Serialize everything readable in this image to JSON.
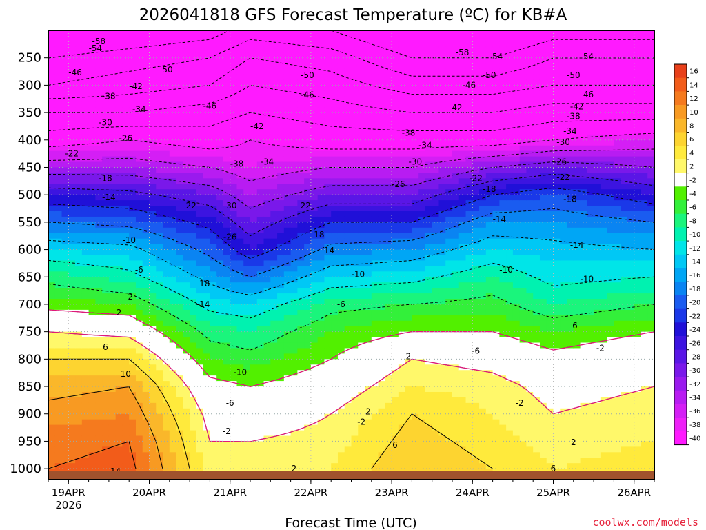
{
  "chart_data": {
    "type": "heatmap",
    "title": "2026041818 GFS Forecast Temperature (ºC) for KB#A",
    "xlabel": "Forecast Time (UTC)",
    "credit": "coolwx.com/models",
    "y_ticks": [
      250,
      300,
      350,
      400,
      450,
      500,
      550,
      600,
      650,
      700,
      750,
      800,
      850,
      900,
      950,
      1000
    ],
    "y_range_hpa": [
      200,
      1020
    ],
    "x_ticks": [
      {
        "label": "19APR",
        "sublabel": "2026",
        "hour": 6
      },
      {
        "label": "20APR",
        "sublabel": "",
        "hour": 30
      },
      {
        "label": "21APR",
        "sublabel": "",
        "hour": 54
      },
      {
        "label": "22APR",
        "sublabel": "",
        "hour": 78
      },
      {
        "label": "23APR",
        "sublabel": "",
        "hour": 102
      },
      {
        "label": "24APR",
        "sublabel": "",
        "hour": 126
      },
      {
        "label": "25APR",
        "sublabel": "",
        "hour": 150
      },
      {
        "label": "26APR",
        "sublabel": "",
        "hour": 174
      }
    ],
    "x_range_hours": [
      0,
      180
    ],
    "colorbar": {
      "levels": [
        16,
        14,
        12,
        10,
        8,
        6,
        4,
        2,
        -2,
        -4,
        -6,
        -8,
        -10,
        -12,
        -14,
        -16,
        -18,
        -20,
        -22,
        -24,
        -26,
        -28,
        -30,
        -32,
        -34,
        -36,
        -38,
        -40
      ],
      "colors": [
        "#e8401a",
        "#f25c1a",
        "#f57a1e",
        "#f89a22",
        "#fab72a",
        "#fdd430",
        "#ffea3c",
        "#fff86a",
        "#ffffff",
        "#52f000",
        "#33f03a",
        "#1af57c",
        "#00f2b0",
        "#00e5e8",
        "#00c8f5",
        "#00a6f5",
        "#0a84f2",
        "#1a5cf0",
        "#1a38e8",
        "#2010d8",
        "#3c14e0",
        "#5a16e6",
        "#7a18ea",
        "#9a1aee",
        "#b81cf2",
        "#d41ef5",
        "#ee20f8",
        "#ff1aff"
      ]
    },
    "temperature_profiles": [
      {
        "time_hour": 0,
        "temp_c": [
          -58,
          -54,
          -46,
          -40,
          -32,
          -24,
          -18,
          -12,
          -7,
          -3,
          2,
          6,
          9,
          11,
          13,
          14
        ]
      },
      {
        "time_hour": 24,
        "temp_c": [
          -56,
          -52,
          -46,
          -38,
          -32,
          -25,
          -19,
          -13,
          -9,
          -4,
          1,
          6,
          10,
          12,
          14,
          15
        ]
      },
      {
        "time_hour": 48,
        "temp_c": [
          -54,
          -50,
          -44,
          -40,
          -34,
          -28,
          -23,
          -19,
          -15,
          -11,
          -7,
          -4,
          -1,
          1,
          2,
          3
        ]
      },
      {
        "time_hour": 60,
        "temp_c": [
          -50,
          -46,
          -42,
          -38,
          -36,
          -32,
          -28,
          -24,
          -18,
          -12,
          -8,
          -5,
          -2,
          0,
          2,
          3
        ]
      },
      {
        "time_hour": 84,
        "temp_c": [
          -52,
          -48,
          -44,
          -40,
          -34,
          -28,
          -22,
          -17,
          -12,
          -7,
          -4,
          -2,
          0,
          2,
          3,
          4
        ]
      },
      {
        "time_hour": 108,
        "temp_c": [
          -58,
          -52,
          -46,
          -40,
          -34,
          -28,
          -22,
          -16,
          -11,
          -6,
          -2,
          2,
          4,
          6,
          7,
          8
        ]
      },
      {
        "time_hour": 132,
        "temp_c": [
          -58,
          -52,
          -46,
          -40,
          -30,
          -22,
          -16,
          -12,
          -8,
          -5,
          -2,
          1,
          3,
          4,
          5,
          6
        ]
      },
      {
        "time_hour": 150,
        "temp_c": [
          -54,
          -50,
          -44,
          -38,
          -28,
          -20,
          -16,
          -13,
          -11,
          -8,
          -4,
          -1,
          1,
          2,
          3,
          4
        ]
      },
      {
        "time_hour": 180,
        "temp_c": [
          -54,
          -50,
          -44,
          -36,
          -30,
          -24,
          -18,
          -14,
          -10,
          -6,
          -2,
          1,
          2,
          3,
          4,
          5
        ]
      }
    ],
    "contour_labels": [
      {
        "v": "-58",
        "h": 15,
        "p": 220
      },
      {
        "v": "-54",
        "h": 14,
        "p": 233
      },
      {
        "v": "-46",
        "h": 8,
        "p": 277
      },
      {
        "v": "-50",
        "h": 35,
        "p": 272
      },
      {
        "v": "-42",
        "h": 26,
        "p": 302
      },
      {
        "v": "-38",
        "h": 18,
        "p": 320
      },
      {
        "v": "-34",
        "h": 27,
        "p": 344
      },
      {
        "v": "-30",
        "h": 17,
        "p": 368
      },
      {
        "v": "-26",
        "h": 23,
        "p": 397
      },
      {
        "v": "-22",
        "h": 7,
        "p": 425
      },
      {
        "v": "-18",
        "h": 17,
        "p": 470
      },
      {
        "v": "-14",
        "h": 18,
        "p": 505
      },
      {
        "v": "-10",
        "h": 24,
        "p": 583
      },
      {
        "v": "-6",
        "h": 27,
        "p": 637
      },
      {
        "v": "-2",
        "h": 24,
        "p": 686
      },
      {
        "v": "2",
        "h": 21,
        "p": 715
      },
      {
        "v": "6",
        "h": 17,
        "p": 778
      },
      {
        "v": "10",
        "h": 23,
        "p": 827
      },
      {
        "v": "14",
        "h": 20,
        "p": 1005
      },
      {
        "v": "-46",
        "h": 48,
        "p": 338
      },
      {
        "v": "-42",
        "h": 62,
        "p": 375
      },
      {
        "v": "-38",
        "h": 56,
        "p": 444
      },
      {
        "v": "-34",
        "h": 65,
        "p": 440
      },
      {
        "v": "-30",
        "h": 54,
        "p": 520
      },
      {
        "v": "-26",
        "h": 54,
        "p": 577
      },
      {
        "v": "-22",
        "h": 42,
        "p": 520
      },
      {
        "v": "-18",
        "h": 46,
        "p": 662
      },
      {
        "v": "-14",
        "h": 46,
        "p": 700
      },
      {
        "v": "-10",
        "h": 57,
        "p": 824
      },
      {
        "v": "-6",
        "h": 54,
        "p": 880
      },
      {
        "v": "-2",
        "h": 53,
        "p": 932
      },
      {
        "v": "2",
        "h": 73,
        "p": 1000
      },
      {
        "v": "-50",
        "h": 77,
        "p": 282
      },
      {
        "v": "-46",
        "h": 77,
        "p": 318
      },
      {
        "v": "-22",
        "h": 76,
        "p": 520
      },
      {
        "v": "-18",
        "h": 80,
        "p": 573
      },
      {
        "v": "-14",
        "h": 83,
        "p": 602
      },
      {
        "v": "-10",
        "h": 92,
        "p": 645
      },
      {
        "v": "-6",
        "h": 87,
        "p": 700
      },
      {
        "v": "-2",
        "h": 93,
        "p": 915
      },
      {
        "v": "2",
        "h": 95,
        "p": 896
      },
      {
        "v": "-26",
        "h": 104,
        "p": 481
      },
      {
        "v": "-30",
        "h": 109,
        "p": 440
      },
      {
        "v": "-34",
        "h": 112,
        "p": 410
      },
      {
        "v": "-38",
        "h": 107,
        "p": 387
      },
      {
        "v": "2",
        "h": 107,
        "p": 795
      },
      {
        "v": "6",
        "h": 103,
        "p": 957
      },
      {
        "v": "-58",
        "h": 123,
        "p": 240
      },
      {
        "v": "-54",
        "h": 133,
        "p": 248
      },
      {
        "v": "-50",
        "h": 131,
        "p": 282
      },
      {
        "v": "-46",
        "h": 125,
        "p": 300
      },
      {
        "v": "-42",
        "h": 121,
        "p": 341
      },
      {
        "v": "-22",
        "h": 127,
        "p": 470
      },
      {
        "v": "-18",
        "h": 131,
        "p": 490
      },
      {
        "v": "-14",
        "h": 134,
        "p": 545
      },
      {
        "v": "-10",
        "h": 136,
        "p": 637
      },
      {
        "v": "-6",
        "h": 127,
        "p": 785
      },
      {
        "v": "-2",
        "h": 140,
        "p": 880
      },
      {
        "v": "-54",
        "h": 160,
        "p": 248
      },
      {
        "v": "-50",
        "h": 156,
        "p": 282
      },
      {
        "v": "-46",
        "h": 160,
        "p": 317
      },
      {
        "v": "-42",
        "h": 157,
        "p": 339
      },
      {
        "v": "-38",
        "h": 156,
        "p": 357
      },
      {
        "v": "-34",
        "h": 155,
        "p": 384
      },
      {
        "v": "-30",
        "h": 153,
        "p": 404
      },
      {
        "v": "-26",
        "h": 152,
        "p": 440
      },
      {
        "v": "-22",
        "h": 153,
        "p": 468
      },
      {
        "v": "-18",
        "h": 155,
        "p": 508
      },
      {
        "v": "-14",
        "h": 157,
        "p": 592
      },
      {
        "v": "-10",
        "h": 160,
        "p": 654
      },
      {
        "v": "-6",
        "h": 156,
        "p": 739
      },
      {
        "v": "-2",
        "h": 164,
        "p": 780
      },
      {
        "v": "2",
        "h": 156,
        "p": 952
      },
      {
        "v": "6",
        "h": 150,
        "p": 1000
      }
    ]
  }
}
